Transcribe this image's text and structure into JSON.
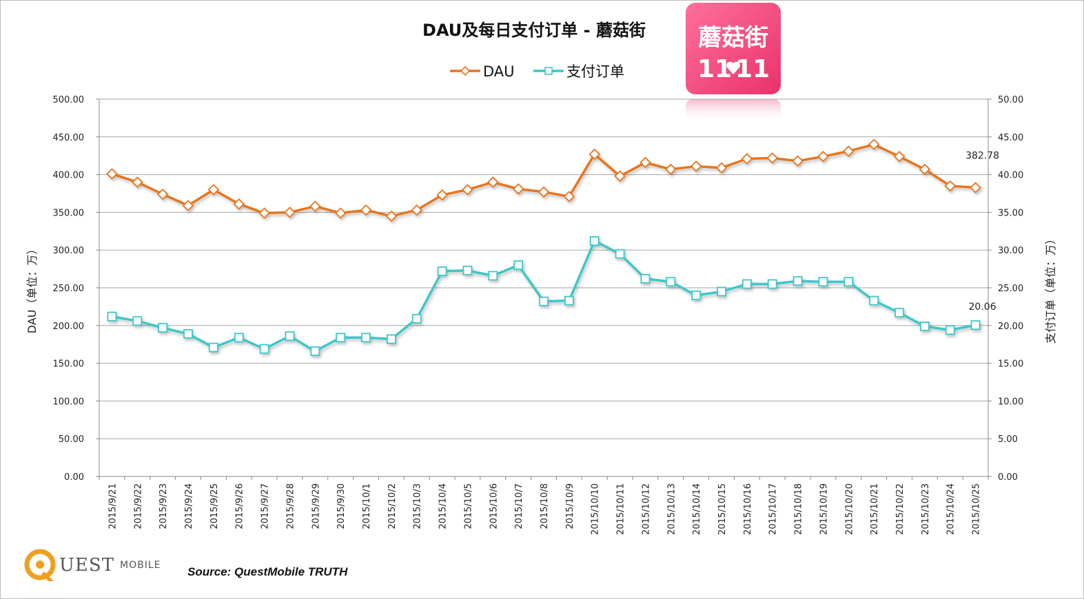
{
  "chart_data": {
    "type": "line",
    "title": "DAU及每日支付订单 - 蘑菇街",
    "categories": [
      "2015/9/21",
      "2015/9/22",
      "2015/9/23",
      "2015/9/24",
      "2015/9/25",
      "2015/9/26",
      "2015/9/27",
      "2015/9/28",
      "2015/9/29",
      "2015/9/30",
      "2015/10/1",
      "2015/10/2",
      "2015/10/3",
      "2015/10/4",
      "2015/10/5",
      "2015/10/6",
      "2015/10/7",
      "2015/10/8",
      "2015/10/9",
      "2015/10/10",
      "2015/10/11",
      "2015/10/12",
      "2015/10/13",
      "2015/10/14",
      "2015/10/15",
      "2015/10/16",
      "2015/10/17",
      "2015/10/18",
      "2015/10/19",
      "2015/10/20",
      "2015/10/21",
      "2015/10/22",
      "2015/10/23",
      "2015/10/24",
      "2015/10/25"
    ],
    "series": [
      {
        "name": "DAU",
        "axis": "left",
        "color": "#e8741d",
        "values": [
          401,
          390,
          374,
          359,
          380,
          361,
          349,
          350,
          358,
          349,
          353,
          345,
          353,
          373,
          380,
          390,
          381,
          377,
          371,
          427,
          398,
          416,
          407,
          411,
          409,
          421,
          422,
          418,
          424,
          431,
          440,
          424,
          407,
          385,
          382.78
        ]
      },
      {
        "name": "支付订单",
        "axis": "right",
        "color": "#3ec7c8",
        "values": [
          21.2,
          20.6,
          19.7,
          18.9,
          17.1,
          18.4,
          16.9,
          18.6,
          16.6,
          18.4,
          18.4,
          18.2,
          20.9,
          27.2,
          27.3,
          26.6,
          28.0,
          23.2,
          23.3,
          31.2,
          29.5,
          26.2,
          25.8,
          24.0,
          24.5,
          25.5,
          25.5,
          25.9,
          25.8,
          25.8,
          23.3,
          21.7,
          19.9,
          19.4,
          20.06
        ]
      }
    ],
    "y_left": {
      "label": "DAU（单位：万）",
      "ylim": [
        0,
        500
      ],
      "ticks": [
        "0.00",
        "50.00",
        "100.00",
        "150.00",
        "200.00",
        "250.00",
        "300.00",
        "350.00",
        "400.00",
        "450.00",
        "500.00"
      ]
    },
    "y_right": {
      "label": "支付订单（单位：万）",
      "ylim": [
        0,
        50
      ],
      "ticks": [
        "0.00",
        "5.00",
        "10.00",
        "15.00",
        "20.00",
        "25.00",
        "30.00",
        "35.00",
        "40.00",
        "45.00",
        "50.00"
      ]
    },
    "annotations": [
      {
        "series": 0,
        "index": 34,
        "text": "382.78"
      },
      {
        "series": 1,
        "index": 34,
        "text": "20.06"
      }
    ],
    "legend": {
      "placement": "top-center",
      "entries": [
        "DAU",
        "支付订单"
      ]
    },
    "grid": true
  },
  "badge": {
    "line1": "蘑菇街",
    "line2a": "11",
    "line2b": "11"
  },
  "footer": {
    "logo_q": "UEST",
    "logo_mobile": "MOBILE",
    "source": "Source: QuestMobile TRUTH"
  }
}
